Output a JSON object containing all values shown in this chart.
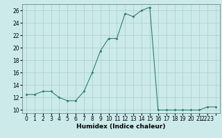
{
  "x": [
    0,
    1,
    2,
    3,
    4,
    5,
    6,
    7,
    8,
    9,
    10,
    11,
    12,
    13,
    14,
    15,
    16,
    17,
    18,
    19,
    20,
    21,
    22,
    23
  ],
  "y": [
    12.5,
    12.5,
    13,
    13,
    12,
    11.5,
    11.5,
    13,
    16,
    19.5,
    21.5,
    21.5,
    25.5,
    25,
    26,
    26.5,
    10,
    10,
    10,
    10,
    10,
    10,
    10.5,
    10.5
  ],
  "xlabel": "Humidex (Indice chaleur)",
  "xlim": [
    -0.5,
    23.5
  ],
  "ylim": [
    9.5,
    27
  ],
  "yticks": [
    10,
    12,
    14,
    16,
    18,
    20,
    22,
    24,
    26
  ],
  "xtick_labels": [
    "0",
    "1",
    "2",
    "3",
    "4",
    "5",
    "6",
    "7",
    "8",
    "9",
    "10",
    "11",
    "12",
    "13",
    "14",
    "15",
    "16",
    "17",
    "18",
    "19",
    "20",
    "21",
    "2223",
    ""
  ],
  "line_color": "#2e7d6e",
  "marker": "D",
  "marker_size": 1.5,
  "bg_color": "#cceaea",
  "grid_color": "#aacccc",
  "label_fontsize": 6.5,
  "tick_fontsize": 5.5
}
